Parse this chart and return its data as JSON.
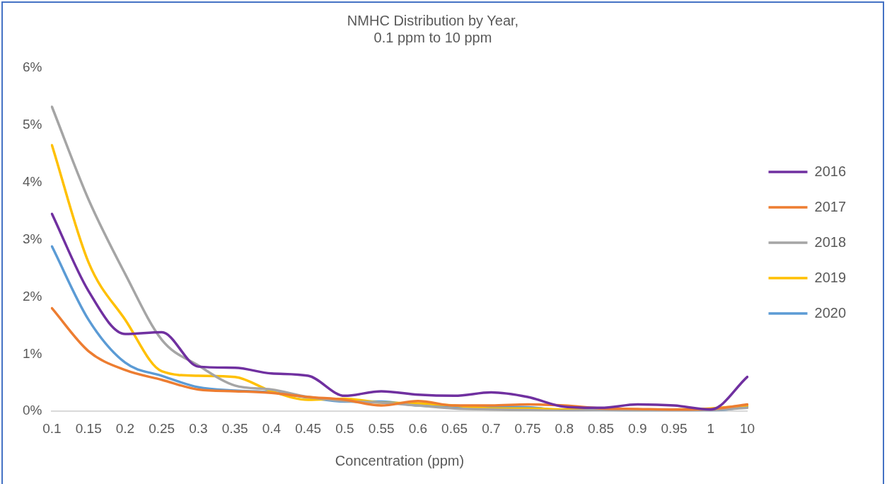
{
  "chart_data": {
    "type": "line",
    "title": "NMHC Distribution by Year, 0.1 ppm to 10 ppm",
    "xlabel": "Concentration (ppm)",
    "categories": [
      "0.1",
      "0.15",
      "0.2",
      "0.25",
      "0.3",
      "0.35",
      "0.4",
      "0.45",
      "0.5",
      "0.55",
      "0.6",
      "0.65",
      "0.7",
      "0.75",
      "0.8",
      "0.85",
      "0.9",
      "0.95",
      "1",
      "10"
    ],
    "series": [
      {
        "name": "2016",
        "color": "#7030a0",
        "values": [
          3.45,
          2.1,
          1.35,
          1.38,
          0.78,
          0.76,
          0.66,
          0.62,
          0.27,
          0.35,
          0.29,
          0.27,
          0.33,
          0.25,
          0.08,
          0.06,
          0.12,
          0.1,
          0.03,
          0.6
        ]
      },
      {
        "name": "2017",
        "color": "#ed7d31",
        "values": [
          1.8,
          1.05,
          0.72,
          0.55,
          0.38,
          0.35,
          0.32,
          0.25,
          0.2,
          0.1,
          0.18,
          0.1,
          0.1,
          0.12,
          0.1,
          0.05,
          0.04,
          0.03,
          0.04,
          0.12
        ]
      },
      {
        "name": "2018",
        "color": "#a5a5a5",
        "values": [
          5.32,
          3.7,
          2.4,
          1.25,
          0.8,
          0.45,
          0.38,
          0.25,
          0.18,
          0.15,
          0.1,
          0.05,
          0.03,
          0.02,
          0.01,
          0.02,
          0.01,
          0.01,
          0.02,
          0.06
        ]
      },
      {
        "name": "2019",
        "color": "#ffc000",
        "values": [
          4.65,
          2.6,
          1.6,
          0.7,
          0.62,
          0.6,
          0.35,
          0.2,
          0.22,
          0.15,
          0.14,
          0.1,
          0.05,
          0.05,
          0.03,
          0.04,
          0.02,
          0.03,
          0.05,
          0.1
        ]
      },
      {
        "name": "2020",
        "color": "#5b9bd5",
        "values": [
          2.88,
          1.6,
          0.85,
          0.62,
          0.42,
          0.36,
          0.33,
          0.24,
          0.17,
          0.17,
          0.1,
          0.08,
          0.08,
          0.07,
          0.02,
          0.02,
          0.01,
          0.01,
          0.01,
          0.08
        ]
      }
    ],
    "ylim": [
      0,
      6
    ],
    "yticks": [
      {
        "value": 0,
        "label": "0%"
      },
      {
        "value": 1,
        "label": "1%"
      },
      {
        "value": 2,
        "label": "2%"
      },
      {
        "value": 3,
        "label": "3%"
      },
      {
        "value": 4,
        "label": "4%"
      },
      {
        "value": 5,
        "label": "5%"
      },
      {
        "value": 6,
        "label": "6%"
      }
    ],
    "legend": "right",
    "grid": false,
    "marker": "none",
    "line_style": "solid"
  }
}
